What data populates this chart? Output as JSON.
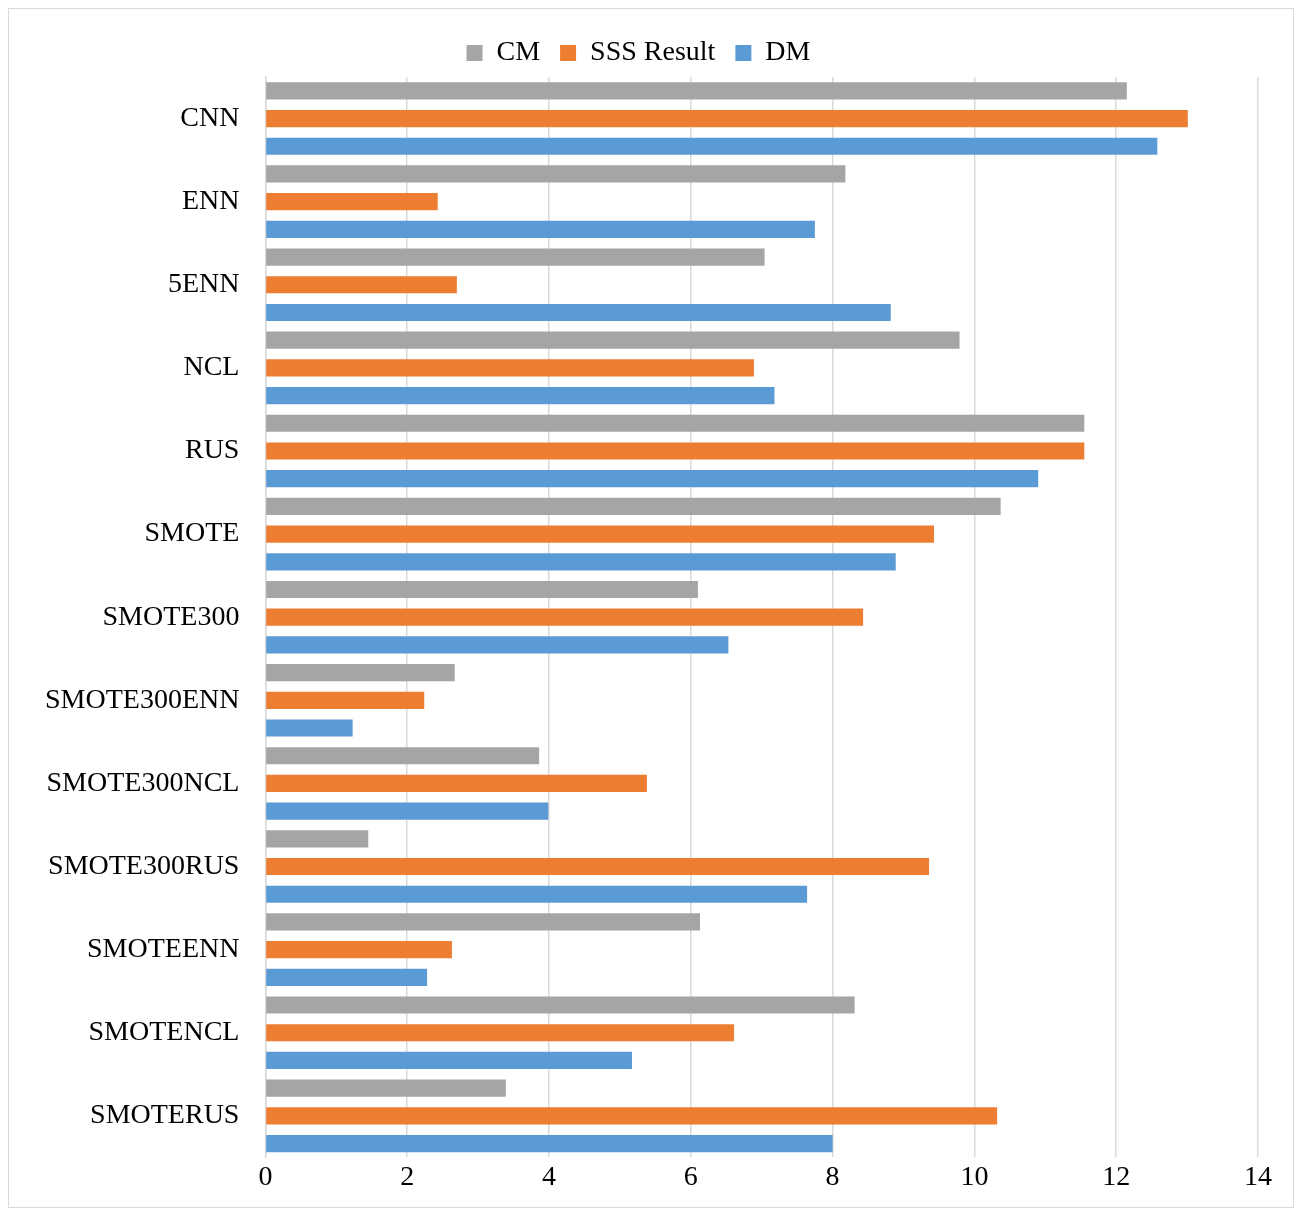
{
  "chart_data": {
    "type": "bar",
    "orientation": "horizontal",
    "categories": [
      "CNN",
      "ENN",
      "5ENN",
      "NCL",
      "RUS",
      "SMOTE",
      "SMOTE300",
      "SMOTE300ENN",
      "SMOTE300NCL",
      "SMOTE300RUS",
      "SMOTEENN",
      "SMOTENCL",
      "SMOTERUS"
    ],
    "series": [
      {
        "name": "CM",
        "color": "#a5a5a5",
        "values": [
          12.15,
          8.18,
          7.04,
          9.79,
          11.55,
          10.37,
          6.1,
          2.67,
          3.86,
          1.45,
          6.13,
          8.31,
          3.39
        ]
      },
      {
        "name": "SSS Result",
        "color": "#ed7d31",
        "values": [
          13.01,
          2.43,
          2.7,
          6.89,
          11.55,
          9.43,
          8.43,
          2.24,
          5.38,
          9.36,
          2.63,
          6.61,
          10.32
        ]
      },
      {
        "name": "DM",
        "color": "#5b9bd5",
        "values": [
          12.58,
          7.75,
          8.82,
          7.18,
          10.9,
          8.89,
          6.53,
          1.23,
          3.99,
          7.64,
          2.28,
          5.17,
          8.0
        ]
      }
    ],
    "xlim": [
      0,
      14
    ],
    "xticks": [
      0,
      2,
      4,
      6,
      8,
      10,
      12,
      14
    ],
    "grid": "x",
    "legend": "top"
  }
}
